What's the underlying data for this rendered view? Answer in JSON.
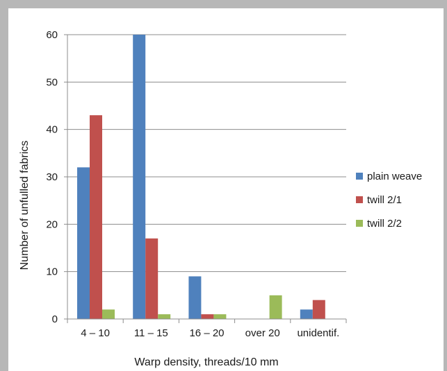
{
  "chart_data": {
    "type": "bar",
    "categories": [
      "4 – 10",
      "11 – 15",
      "16 – 20",
      "over 20",
      "unidentif."
    ],
    "series": [
      {
        "name": "plain weave",
        "color": "#4f81bd",
        "values": [
          32,
          60,
          9,
          0,
          2
        ]
      },
      {
        "name": "twill 2/1",
        "color": "#c0504d",
        "values": [
          43,
          17,
          1,
          0,
          4
        ]
      },
      {
        "name": "twill 2/2",
        "color": "#9bbb59",
        "values": [
          2,
          1,
          1,
          5,
          0
        ]
      }
    ],
    "xlabel": "Warp density, threads/10 mm",
    "ylabel": "Number of unfulled fabrics",
    "ylim": [
      0,
      60
    ],
    "yticks": [
      0,
      10,
      20,
      30,
      40,
      50,
      60
    ],
    "grid": true,
    "legend_position": "right"
  }
}
